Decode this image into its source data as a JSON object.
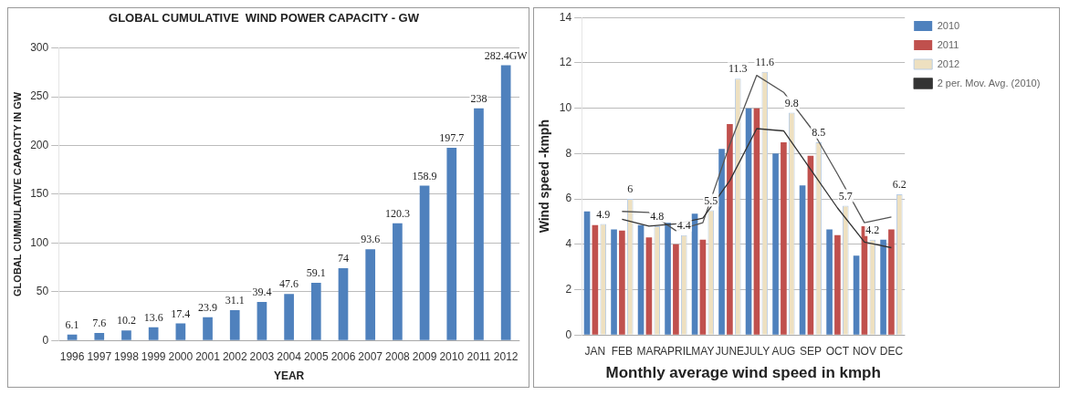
{
  "chart_data": [
    {
      "type": "bar",
      "title": "GLOBAL CUMULATIVE  WIND POWER CAPACITY - GW",
      "xlabel": "YEAR",
      "ylabel": "GLOBAL CUMMULATIVE CAPACITY IN GW",
      "categories": [
        "1996",
        "1997",
        "1998",
        "1999",
        "2000",
        "2001",
        "2002",
        "2003",
        "2004",
        "2005",
        "2006",
        "2007",
        "2008",
        "2009",
        "2010",
        "2011",
        "2012"
      ],
      "values": [
        6.1,
        7.6,
        10.2,
        13.6,
        17.4,
        23.9,
        31.1,
        39.4,
        47.6,
        59.1,
        74,
        93.6,
        120.3,
        158.9,
        197.7,
        238,
        282.4
      ],
      "value_labels": [
        "6.1",
        "7.6",
        "10.2",
        "13.6",
        "17.4",
        "23.9",
        "31.1",
        "39.4",
        "47.6",
        "59.1",
        "74",
        "93.6",
        "120.3",
        "158.9",
        "197.7",
        "238",
        "282.4GW"
      ],
      "color": "#4f81bd",
      "ylim": [
        0,
        300
      ],
      "yticks": [
        0,
        50,
        100,
        150,
        200,
        250,
        300
      ],
      "grid": "y",
      "legend": false
    },
    {
      "type": "bar",
      "xlabel": "Monthly average wind speed in kmph",
      "ylabel": "Wind speed -kmph",
      "categories": [
        "JAN",
        "FEB",
        "MAR",
        "APRIL",
        "MAY",
        "JUNE",
        "JULY",
        "AUG",
        "SEP",
        "OCT",
        "NOV",
        "DEC"
      ],
      "series": [
        {
          "name": "2010",
          "color": "#4f81bd",
          "values": [
            5.45,
            4.65,
            4.85,
            4.95,
            5.35,
            8.2,
            10,
            8,
            6.6,
            4.65,
            3.5,
            4.2
          ]
        },
        {
          "name": "2011",
          "color": "#c0504d",
          "values": [
            4.85,
            4.6,
            4.3,
            4.0,
            4.2,
            9.3,
            10,
            8.5,
            7.9,
            4.4,
            4.8,
            4.65
          ]
        },
        {
          "name": "2012",
          "color": "#eee0c0",
          "values": [
            4.9,
            6,
            4.8,
            4.4,
            5.5,
            11.3,
            11.6,
            9.8,
            8.5,
            5.7,
            4.2,
            6.2
          ],
          "value_labels": [
            "4.9",
            "6",
            "4.8",
            "4.4",
            "5.5",
            "11.3",
            "11.6",
            "9.8",
            "8.5",
            "5.7",
            "4.2",
            "6.2"
          ]
        },
        {
          "name": "2 per. Mov. Avg. (2010)",
          "type": "line",
          "color": "#333333",
          "values": [
            null,
            5.1,
            4.8,
            4.9,
            5.15,
            6.8,
            9.1,
            9.0,
            7.3,
            5.6,
            4.1,
            3.85
          ]
        },
        {
          "type": "line",
          "color": "#555555",
          "values": [
            null,
            5.45,
            5.4,
            4.6,
            4.95,
            8.4,
            11.45,
            10.7,
            9.15,
            7.1,
            4.95,
            5.2
          ]
        }
      ],
      "ylim": [
        0,
        14
      ],
      "yticks": [
        0,
        2,
        4,
        6,
        8,
        10,
        12,
        14
      ],
      "grid": "y",
      "legend": "top right",
      "marker": "none"
    }
  ]
}
